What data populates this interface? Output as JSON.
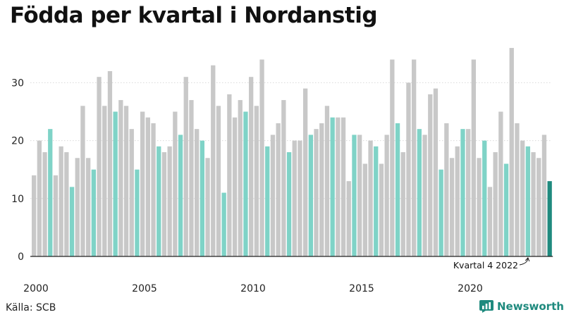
{
  "title": "Födda per kvartal i Nordanstig",
  "source": "Källa: SCB",
  "brand": {
    "name": "Newsworthy",
    "icon": "newsworthy-logo-icon"
  },
  "colors": {
    "default": "#c8c8c8",
    "q4": "#7fd3c7",
    "highlight": "#1f8a7e"
  },
  "chart_data": {
    "type": "bar",
    "start_year": 2000,
    "x_ticks": [
      "2000",
      "2005",
      "2010",
      "2015",
      "2020"
    ],
    "ylim": [
      0,
      36
    ],
    "y_ticks": [
      "0",
      "10",
      "20",
      "30"
    ],
    "grid": true,
    "annotation": {
      "text": "Kvartal 4 2022",
      "target_index": 91
    },
    "series": [
      {
        "values": [
          14,
          20,
          18,
          22,
          14,
          19,
          18,
          12,
          17,
          26,
          17,
          15,
          31,
          26,
          32,
          25,
          27,
          26,
          22,
          15,
          25,
          24,
          23,
          19,
          18,
          19,
          25,
          21,
          31,
          27,
          22,
          20,
          17,
          33,
          26,
          11,
          28,
          24,
          27,
          25,
          31,
          26,
          34,
          19,
          21,
          23,
          27,
          18,
          20,
          20,
          29,
          21,
          22,
          23,
          26,
          24,
          24,
          24,
          13,
          21,
          21,
          16,
          20,
          19,
          16,
          21,
          34,
          23,
          18,
          30,
          34,
          22,
          21,
          28,
          29,
          15,
          23,
          17,
          19,
          22,
          22,
          34,
          17,
          20,
          12,
          18,
          25,
          16,
          36,
          23,
          20,
          19,
          18,
          17,
          21,
          13
        ]
      }
    ]
  }
}
